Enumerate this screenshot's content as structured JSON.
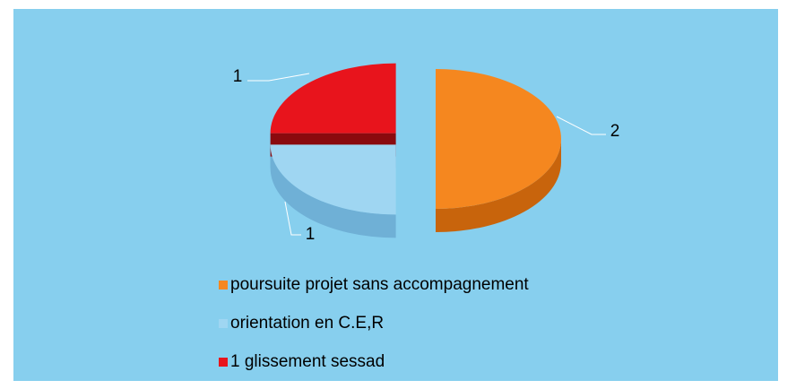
{
  "chart_data": {
    "type": "pie",
    "categories": [
      "poursuite projet sans accompagnement",
      "orientation en C.E,R",
      "1 glissement sessad"
    ],
    "values": [
      2,
      1,
      1
    ],
    "colors": [
      "#f5871f",
      "#9fd6f2",
      "#e8141c"
    ],
    "side_colors": [
      "#c8640c",
      "#6fb0d6",
      "#8a0a0e"
    ],
    "legend": "bottom"
  }
}
